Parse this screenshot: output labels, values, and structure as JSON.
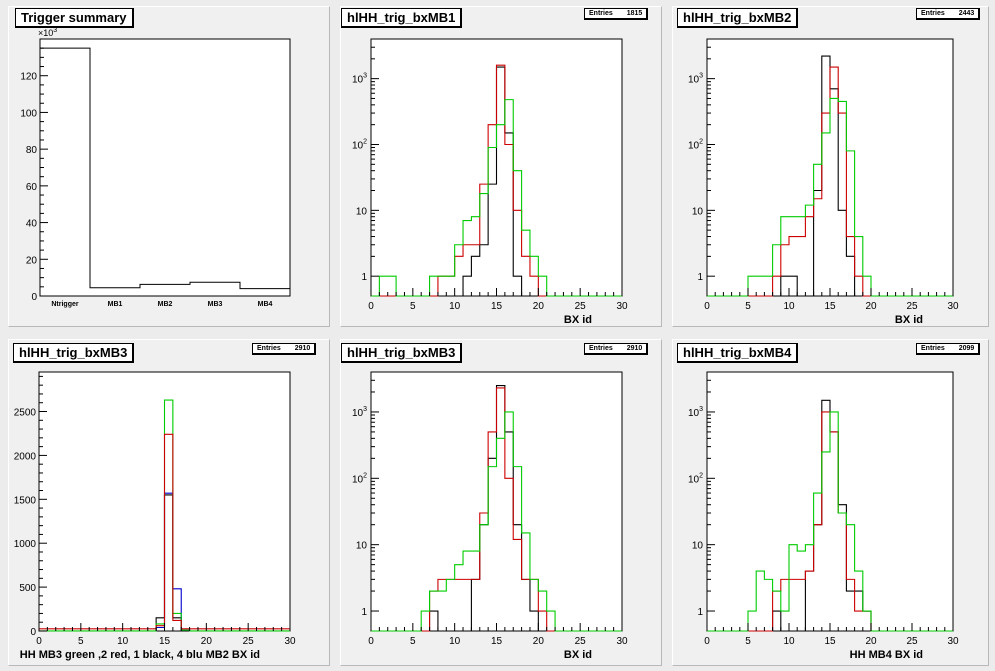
{
  "canvas": {
    "background": "#ececec",
    "pad_background": "#f0f0f0"
  },
  "pads": [
    {
      "name": "trigger-summary",
      "title": "Trigger summary",
      "stats": null
    },
    {
      "name": "hlhh-trig-bxmb1",
      "title": "hlHH_trig_bxMB1",
      "stats": {
        "label": "Entries",
        "value": "1815"
      }
    },
    {
      "name": "hlhh-trig-bxmb2",
      "title": "hlHH_trig_bxMB2",
      "stats": {
        "label": "Entries",
        "value": "2443"
      }
    },
    {
      "name": "hlhh-trig-bxmb3-linear",
      "title": "hlHH_trig_bxMB3",
      "stats": {
        "label": "Entries",
        "value": "2910"
      }
    },
    {
      "name": "hlhh-trig-bxmb3-log",
      "title": "hlHH_trig_bxMB3",
      "stats": {
        "label": "Entries",
        "value": "2910"
      }
    },
    {
      "name": "hlhh-trig-bxmb4",
      "title": "hlHH_trig_bxMB4",
      "stats": {
        "label": "Entries",
        "value": "2099"
      }
    }
  ],
  "chart_data": [
    {
      "type": "bar",
      "title": "Trigger summary",
      "categories": [
        "Ntrigger",
        "MB1",
        "MB2",
        "MB3",
        "MB4"
      ],
      "values": [
        135,
        4.5,
        6.3,
        7.5,
        4.0
      ],
      "multiplier_label": "×10",
      "multiplier_exp": "3",
      "ylim": [
        0,
        140
      ],
      "yticks": [
        0,
        20,
        40,
        60,
        80,
        100,
        120,
        140
      ],
      "ytick_labels": [
        "0",
        "20",
        "40",
        "60",
        "80",
        "100",
        "120"
      ],
      "xlabel": "",
      "ylabel": "",
      "color": "#000000"
    },
    {
      "type": "histogram",
      "title": "hlHH_trig_bxMB1",
      "scale": "log",
      "xlim": [
        0,
        30
      ],
      "ylim": [
        0.5,
        4000
      ],
      "xticks": [
        0,
        5,
        10,
        15,
        20,
        25,
        30
      ],
      "yticks": [
        1,
        10,
        100,
        1000
      ],
      "ytick_labels": [
        "1",
        "10",
        "10^2",
        "10^3"
      ],
      "xlabel": "BX id",
      "series": [
        {
          "color": "#000000",
          "values": [
            0,
            0,
            0,
            0,
            0,
            0,
            0,
            0,
            0,
            0,
            0,
            1,
            2,
            3,
            25,
            1500,
            150,
            1,
            0,
            0,
            0,
            0,
            0,
            0,
            0,
            0,
            0,
            0,
            0,
            0
          ]
        },
        {
          "color": "#cc0000",
          "values": [
            0,
            0,
            0,
            0,
            0,
            0,
            0,
            0,
            1,
            1,
            2,
            3,
            3,
            25,
            200,
            1600,
            100,
            10,
            2,
            1,
            0,
            0,
            0,
            0,
            0,
            0,
            0,
            0,
            0,
            0
          ]
        },
        {
          "color": "#00cc00",
          "values": [
            0,
            1,
            1,
            0,
            0,
            0,
            0,
            1,
            1,
            1,
            3,
            7,
            8,
            18,
            90,
            200,
            480,
            40,
            5,
            2,
            1,
            0,
            0,
            0,
            0,
            0,
            0,
            0,
            0,
            0
          ]
        }
      ]
    },
    {
      "type": "histogram",
      "title": "hlHH_trig_bxMB2",
      "scale": "log",
      "xlim": [
        0,
        30
      ],
      "ylim": [
        0.5,
        4000
      ],
      "xticks": [
        0,
        5,
        10,
        15,
        20,
        25,
        30
      ],
      "yticks": [
        1,
        10,
        100,
        1000
      ],
      "ytick_labels": [
        "1",
        "10",
        "10^2",
        "10^3"
      ],
      "xlabel": "BX id",
      "series": [
        {
          "color": "#000000",
          "values": [
            0,
            0,
            0,
            0,
            0,
            0,
            0,
            0,
            0,
            1,
            1,
            0,
            0,
            20,
            2200,
            700,
            10,
            2,
            0,
            0,
            0,
            0,
            0,
            0,
            0,
            0,
            0,
            0,
            0,
            0
          ]
        },
        {
          "color": "#cc0000",
          "values": [
            0,
            0,
            0,
            0,
            0,
            0,
            0,
            0,
            1,
            3,
            4,
            4,
            8,
            15,
            300,
            1500,
            300,
            4,
            1,
            0,
            0,
            0,
            0,
            0,
            0,
            0,
            0,
            0,
            0,
            0
          ]
        },
        {
          "color": "#00cc00",
          "values": [
            0,
            0,
            0,
            0,
            0,
            1,
            1,
            1,
            3,
            8,
            8,
            8,
            12,
            50,
            150,
            500,
            450,
            80,
            4,
            1,
            0,
            0,
            0,
            0,
            0,
            0,
            0,
            0,
            0,
            0
          ]
        }
      ]
    },
    {
      "type": "histogram",
      "title": "hlHH_trig_bxMB3",
      "scale": "linear",
      "xlim": [
        0,
        30
      ],
      "ylim": [
        0,
        2950
      ],
      "xticks": [
        0,
        5,
        10,
        15,
        20,
        25,
        30
      ],
      "yticks": [
        0,
        500,
        1000,
        1500,
        2000,
        2500
      ],
      "ytick_labels": [
        "0",
        "500",
        "1000",
        "1500",
        "2000",
        "2500"
      ],
      "xlabel": "HH  MB3 green ,2 red, 1 black, 4 blu    MB2 BX id",
      "series": [
        {
          "color": "#000000",
          "values": [
            0,
            0,
            0,
            0,
            0,
            0,
            0,
            0,
            0,
            0,
            0,
            0,
            0,
            0,
            150,
            1550,
            150,
            0,
            0,
            0,
            0,
            0,
            0,
            0,
            0,
            0,
            0,
            0,
            0,
            0
          ]
        },
        {
          "color": "#0000cc",
          "values": [
            0,
            0,
            0,
            0,
            0,
            0,
            0,
            0,
            0,
            0,
            0,
            0,
            0,
            0,
            40,
            1570,
            480,
            10,
            0,
            0,
            0,
            0,
            0,
            0,
            0,
            0,
            0,
            0,
            0,
            0
          ]
        },
        {
          "color": "#00cc00",
          "values": [
            1,
            1,
            1,
            1,
            1,
            1,
            1,
            1,
            1,
            1,
            1,
            1,
            1,
            1,
            80,
            2630,
            200,
            10,
            1,
            1,
            1,
            1,
            1,
            1,
            1,
            1,
            1,
            1,
            1,
            1
          ]
        },
        {
          "color": "#cc0000",
          "values": [
            25,
            25,
            25,
            25,
            25,
            25,
            25,
            25,
            25,
            25,
            25,
            25,
            25,
            25,
            60,
            2240,
            120,
            25,
            25,
            25,
            25,
            25,
            25,
            25,
            25,
            25,
            25,
            25,
            25,
            25
          ]
        }
      ]
    },
    {
      "type": "histogram",
      "title": "hlHH_trig_bxMB3",
      "scale": "log",
      "xlim": [
        0,
        30
      ],
      "ylim": [
        0.5,
        4000
      ],
      "xticks": [
        0,
        5,
        10,
        15,
        20,
        25,
        30
      ],
      "yticks": [
        1,
        10,
        100,
        1000
      ],
      "ytick_labels": [
        "1",
        "10",
        "10^2",
        "10^3"
      ],
      "xlabel": "BX id",
      "series": [
        {
          "color": "#000000",
          "values": [
            0,
            0,
            0,
            0,
            0,
            0,
            0,
            1,
            0,
            0,
            0,
            0,
            3,
            20,
            200,
            2500,
            500,
            20,
            3,
            1,
            0,
            0,
            0,
            0,
            0,
            0,
            0,
            0,
            0,
            0
          ]
        },
        {
          "color": "#cc0000",
          "values": [
            0,
            0,
            0,
            0,
            0,
            0,
            0,
            2,
            3,
            3,
            3,
            3,
            3,
            30,
            500,
            2300,
            100,
            12,
            3,
            3,
            1,
            0,
            0,
            0,
            0,
            0,
            0,
            0,
            0,
            0
          ]
        },
        {
          "color": "#00cc00",
          "values": [
            0,
            0,
            0,
            0,
            0,
            0,
            1,
            2,
            2,
            3,
            5,
            8,
            8,
            20,
            150,
            400,
            1000,
            150,
            15,
            3,
            2,
            1,
            0,
            0,
            0,
            0,
            0,
            0,
            0,
            0
          ]
        }
      ]
    },
    {
      "type": "histogram",
      "title": "hlHH_trig_bxMB4",
      "scale": "log",
      "xlim": [
        0,
        30
      ],
      "ylim": [
        0.5,
        4000
      ],
      "xticks": [
        0,
        5,
        10,
        15,
        20,
        25,
        30
      ],
      "yticks": [
        1,
        10,
        100,
        1000
      ],
      "ytick_labels": [
        "1",
        "10",
        "10^2",
        "10^3"
      ],
      "xlabel": "HH MB4 BX id",
      "series": [
        {
          "color": "#000000",
          "values": [
            0,
            0,
            0,
            0,
            0,
            0,
            0,
            0,
            1,
            0,
            0,
            0,
            4,
            20,
            1500,
            500,
            40,
            2,
            2,
            1,
            0,
            0,
            0,
            0,
            0,
            0,
            0,
            0,
            0,
            0
          ]
        },
        {
          "color": "#cc0000",
          "values": [
            0,
            0,
            0,
            0,
            0,
            0,
            0,
            0,
            2,
            3,
            3,
            3,
            4,
            20,
            1000,
            500,
            30,
            3,
            1,
            1,
            0,
            0,
            0,
            0,
            0,
            0,
            0,
            0,
            0,
            0
          ]
        },
        {
          "color": "#00cc00",
          "values": [
            0,
            0,
            0,
            0,
            0,
            1,
            4,
            3,
            2,
            1,
            10,
            8,
            10,
            60,
            250,
            1000,
            30,
            20,
            4,
            1,
            0,
            0,
            0,
            0,
            0,
            0,
            0,
            0,
            0,
            0
          ]
        }
      ]
    }
  ]
}
